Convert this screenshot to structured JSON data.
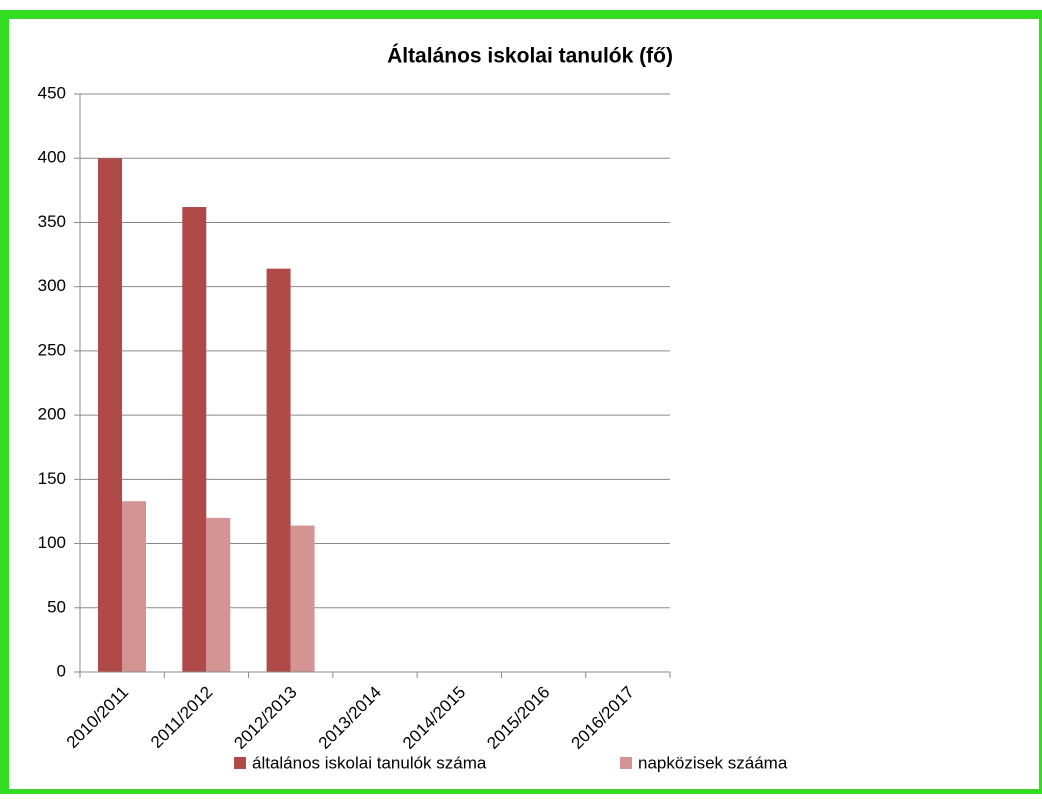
{
  "chart_data": {
    "type": "bar",
    "title": "Általános iskolai tanulók (fő)",
    "categories": [
      "2010/2011",
      "2011/2012",
      "2012/2013",
      "2013/2014",
      "2014/2015",
      "2015/2016",
      "2016/2017"
    ],
    "series": [
      {
        "name": "általános iskolai tanulók száma",
        "color": "#b04a48",
        "values": [
          400,
          362,
          314,
          null,
          null,
          null,
          null
        ]
      },
      {
        "name": "napközisek szááma",
        "color": "#d49494",
        "values": [
          133,
          120,
          114,
          null,
          null,
          null,
          null
        ]
      }
    ],
    "ylim": [
      0,
      450
    ],
    "yticks": [
      0,
      50,
      100,
      150,
      200,
      250,
      300,
      350,
      400,
      450
    ],
    "grid": true,
    "legend": "bottom"
  }
}
